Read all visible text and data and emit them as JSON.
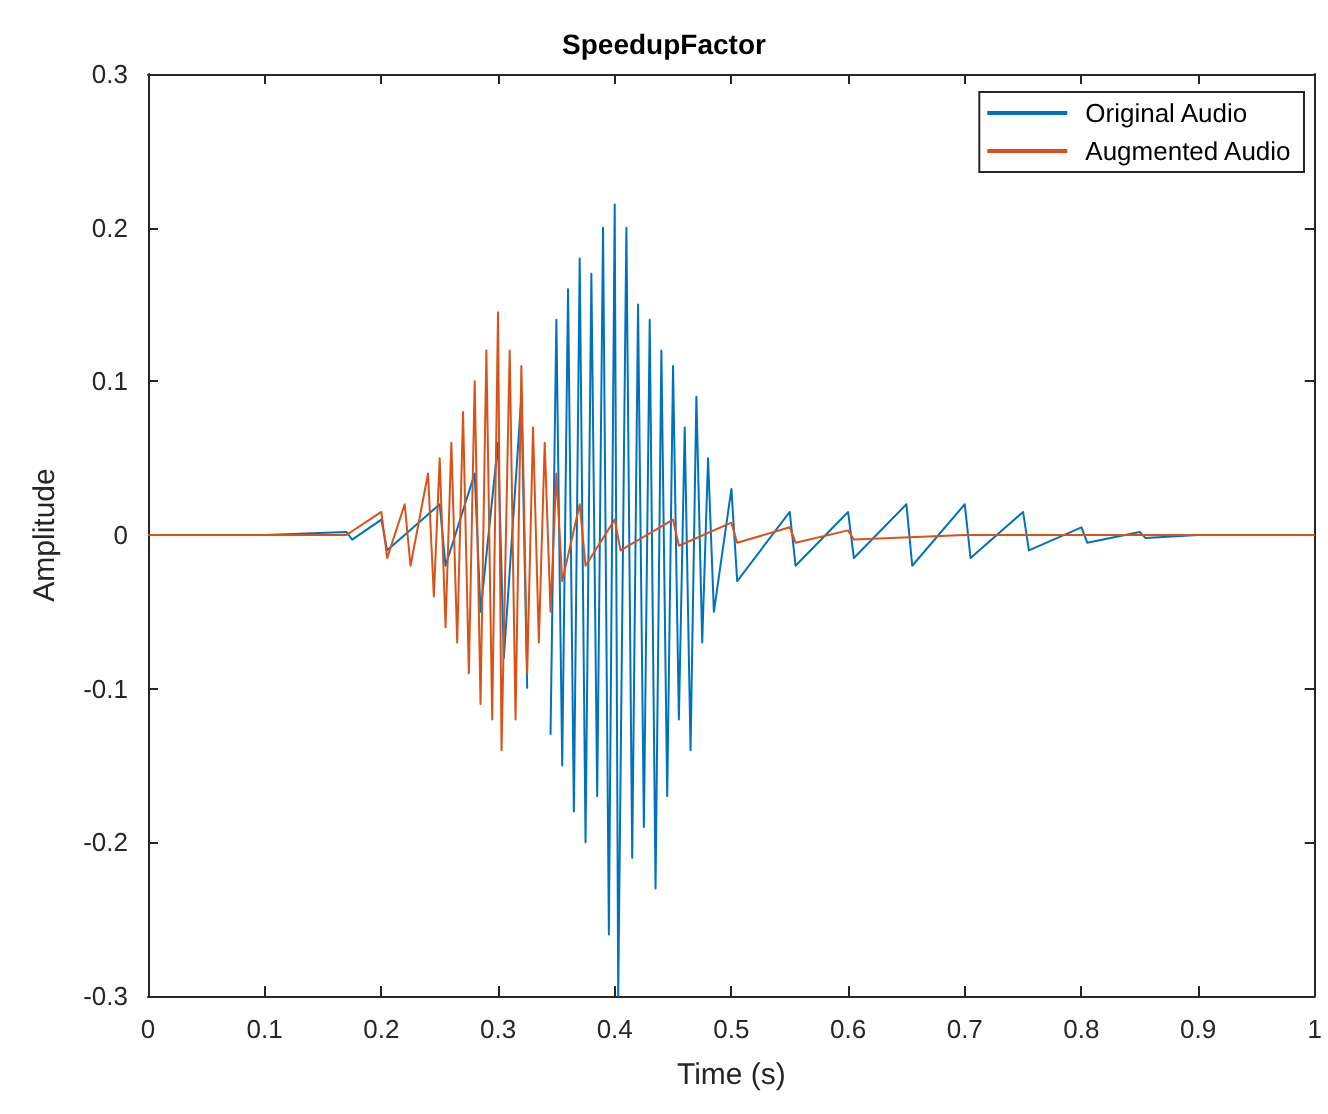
{
  "chart_data": {
    "type": "line",
    "title": "SpeedupFactor",
    "xlabel": "Time (s)",
    "ylabel": "Amplitude",
    "series": [
      {
        "name": "Original Audio",
        "color": "#0072bd",
        "x": [
          0,
          0.1,
          0.17,
          0.175,
          0.2,
          0.205,
          0.25,
          0.255,
          0.28,
          0.285,
          0.3,
          0.305,
          0.32,
          0.325,
          0.34,
          0.345,
          0.35,
          0.355,
          0.36,
          0.365,
          0.37,
          0.375,
          0.38,
          0.385,
          0.39,
          0.395,
          0.4,
          0.403,
          0.41,
          0.415,
          0.42,
          0.425,
          0.43,
          0.435,
          0.44,
          0.445,
          0.45,
          0.455,
          0.46,
          0.465,
          0.47,
          0.475,
          0.48,
          0.485,
          0.5,
          0.505,
          0.55,
          0.555,
          0.6,
          0.605,
          0.65,
          0.655,
          0.7,
          0.705,
          0.75,
          0.755,
          0.8,
          0.805,
          0.85,
          0.855,
          0.9,
          1
        ],
        "values": [
          0,
          0,
          0.002,
          -0.003,
          0.01,
          -0.01,
          0.02,
          -0.02,
          0.04,
          -0.05,
          0.06,
          -0.08,
          0.09,
          -0.1,
          null,
          -0.13,
          0.14,
          -0.15,
          0.16,
          -0.18,
          0.18,
          -0.2,
          0.17,
          -0.17,
          0.2,
          -0.26,
          0.215,
          -0.3,
          0.2,
          -0.21,
          0.15,
          -0.19,
          0.14,
          -0.23,
          0.12,
          -0.17,
          0.11,
          -0.12,
          0.07,
          -0.14,
          0.09,
          -0.07,
          0.05,
          -0.05,
          0.03,
          -0.03,
          0.015,
          -0.02,
          0.015,
          -0.015,
          0.02,
          -0.02,
          0.02,
          -0.015,
          0.015,
          -0.01,
          0.005,
          -0.005,
          0.002,
          -0.002,
          0,
          0
        ]
      },
      {
        "name": "Augmented Audio",
        "color": "#d95319",
        "x": [
          0,
          0.17,
          0.2,
          0.205,
          0.22,
          0.225,
          0.24,
          0.245,
          0.25,
          0.255,
          0.26,
          0.265,
          0.27,
          0.275,
          0.28,
          0.285,
          0.29,
          0.295,
          0.3,
          0.303,
          0.31,
          0.315,
          0.32,
          0.325,
          0.33,
          0.335,
          0.34,
          0.345,
          0.35,
          0.355,
          0.37,
          0.375,
          0.4,
          0.405,
          0.45,
          0.455,
          0.5,
          0.505,
          0.55,
          0.555,
          0.6,
          0.605,
          0.7,
          1
        ],
        "values": [
          0,
          0,
          0.015,
          -0.015,
          0.02,
          -0.02,
          0.04,
          -0.04,
          0.05,
          -0.06,
          0.06,
          -0.07,
          0.08,
          -0.09,
          0.1,
          -0.11,
          0.12,
          -0.12,
          0.145,
          -0.14,
          0.12,
          -0.12,
          0.11,
          -0.09,
          0.07,
          -0.07,
          0.06,
          -0.05,
          0.04,
          -0.03,
          0.02,
          -0.02,
          0.01,
          -0.01,
          0.01,
          -0.007,
          0.008,
          -0.005,
          0.005,
          -0.005,
          0.003,
          -0.003,
          0,
          0
        ]
      }
    ],
    "xlim": [
      0,
      1
    ],
    "xticks": [
      0,
      0.1,
      0.2,
      0.3,
      0.4,
      0.5,
      0.6,
      0.7,
      0.8,
      0.9,
      1
    ],
    "ylim": [
      -0.3,
      0.3
    ],
    "yticks": [
      -0.3,
      -0.2,
      -0.1,
      0,
      0.1,
      0.2,
      0.3
    ],
    "grid": false,
    "legend": "top right",
    "marker": "none",
    "line_style": "solid"
  }
}
